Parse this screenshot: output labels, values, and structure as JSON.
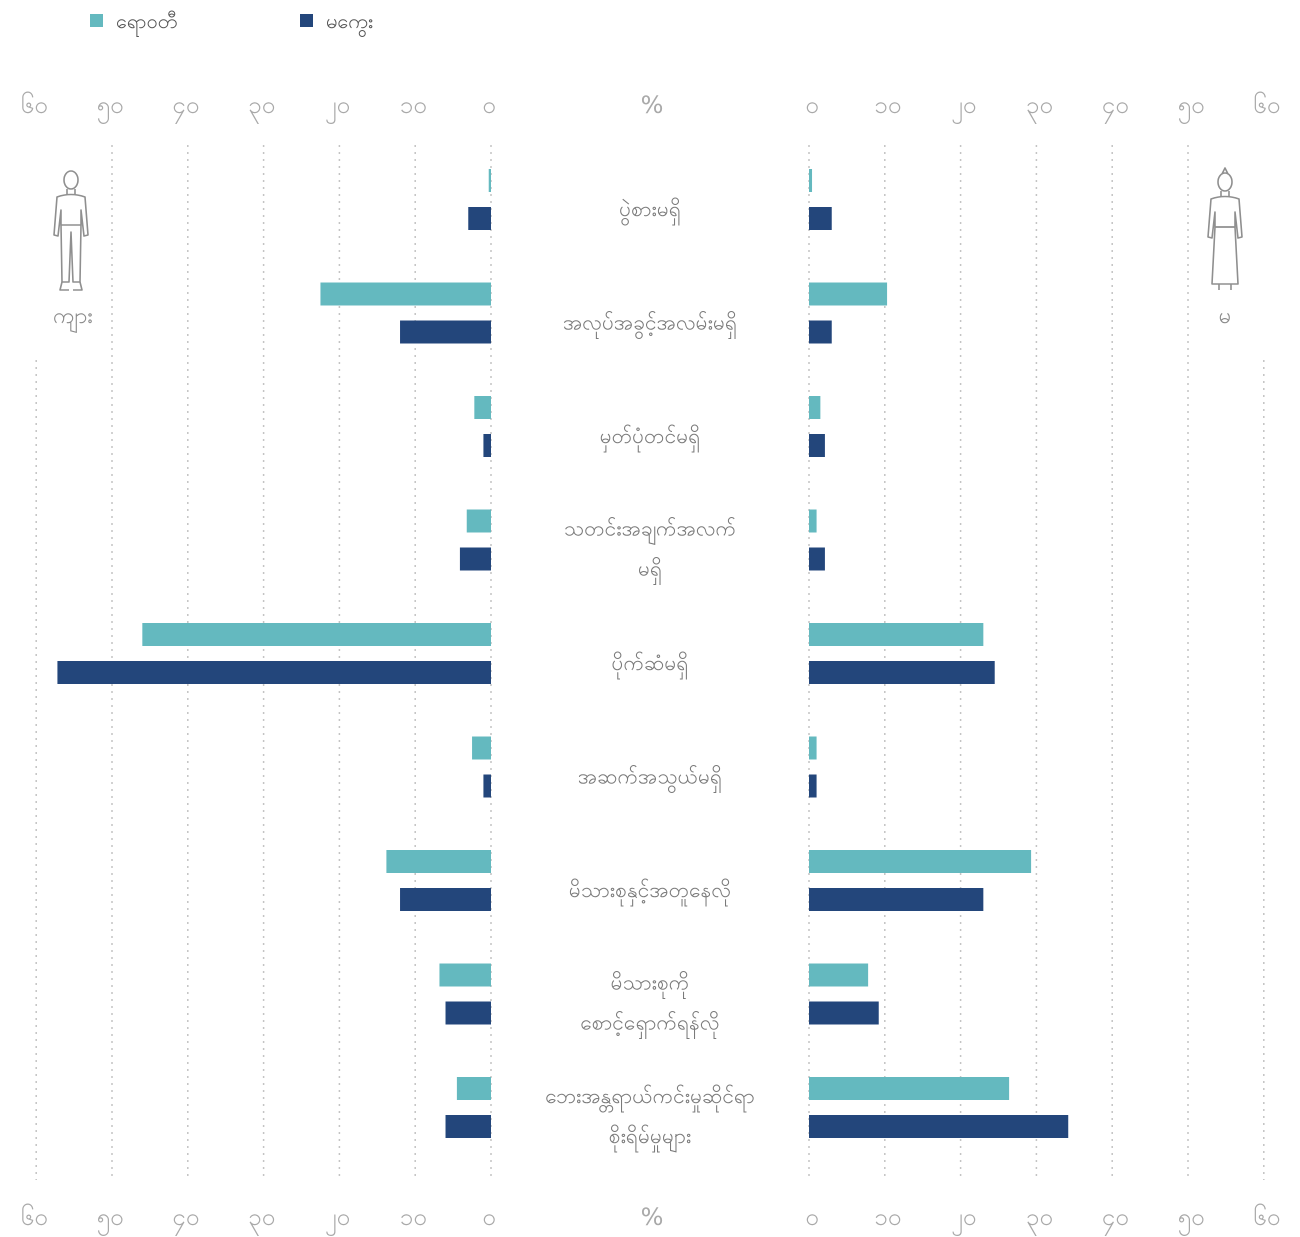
{
  "chart_data": {
    "type": "bar",
    "orientation": "horizontal-butterfly",
    "unit_label": "%",
    "xlim": [
      0,
      60
    ],
    "tick_values": [
      0,
      10,
      20,
      30,
      40,
      50,
      60
    ],
    "tick_labels": [
      "၀",
      "၁၀",
      "၂၀",
      "၃၀",
      "၄၀",
      "၅၀",
      "၆၀"
    ],
    "left_side": {
      "label": "ကျား",
      "icon": "man-figure-icon"
    },
    "right_side": {
      "label": "မ",
      "icon": "woman-figure-icon"
    },
    "legend_position": "top-left",
    "series": [
      {
        "name": "ရောဝတီ",
        "color": "#64b9bf"
      },
      {
        "name": "မကွေး",
        "color": "#23467b"
      }
    ],
    "categories": [
      [
        "ပွဲစားမရှိ"
      ],
      [
        "အလုပ်အခွင့်အလမ်းမရှိ"
      ],
      [
        "မှတ်ပုံတင်မရှိ"
      ],
      [
        "သတင်းအချက်အလက်",
        "မရှိ"
      ],
      [
        "ပိုက်ဆံမရှိ"
      ],
      [
        "အဆက်အသွယ်မရှိ"
      ],
      [
        "မိသားစုနှင့်အတူနေလို"
      ],
      [
        "မိသားစုကို",
        "စောင့်ရှောက်ရန်လို"
      ],
      [
        "ဘေးအန္တရာယ်ကင်းမှုဆိုင်ရာ",
        "စိုးရိမ်မှုများ"
      ]
    ],
    "values": {
      "male": {
        "ရောဝတီ": [
          0.3,
          22.5,
          2.2,
          3.2,
          46,
          2.5,
          13.8,
          6.8,
          4.5
        ],
        "မကွေး": [
          3,
          12,
          1,
          4.1,
          57.2,
          1,
          12,
          6,
          6
        ]
      },
      "female": {
        "ရောဝတီ": [
          0.4,
          10.3,
          1.5,
          1,
          23,
          1,
          29.3,
          7.8,
          26.4
        ],
        "မကွေး": [
          3,
          3,
          2.1,
          2.1,
          24.5,
          1,
          23,
          9.2,
          34.2
        ]
      }
    },
    "grid": "dotted-vertical"
  }
}
